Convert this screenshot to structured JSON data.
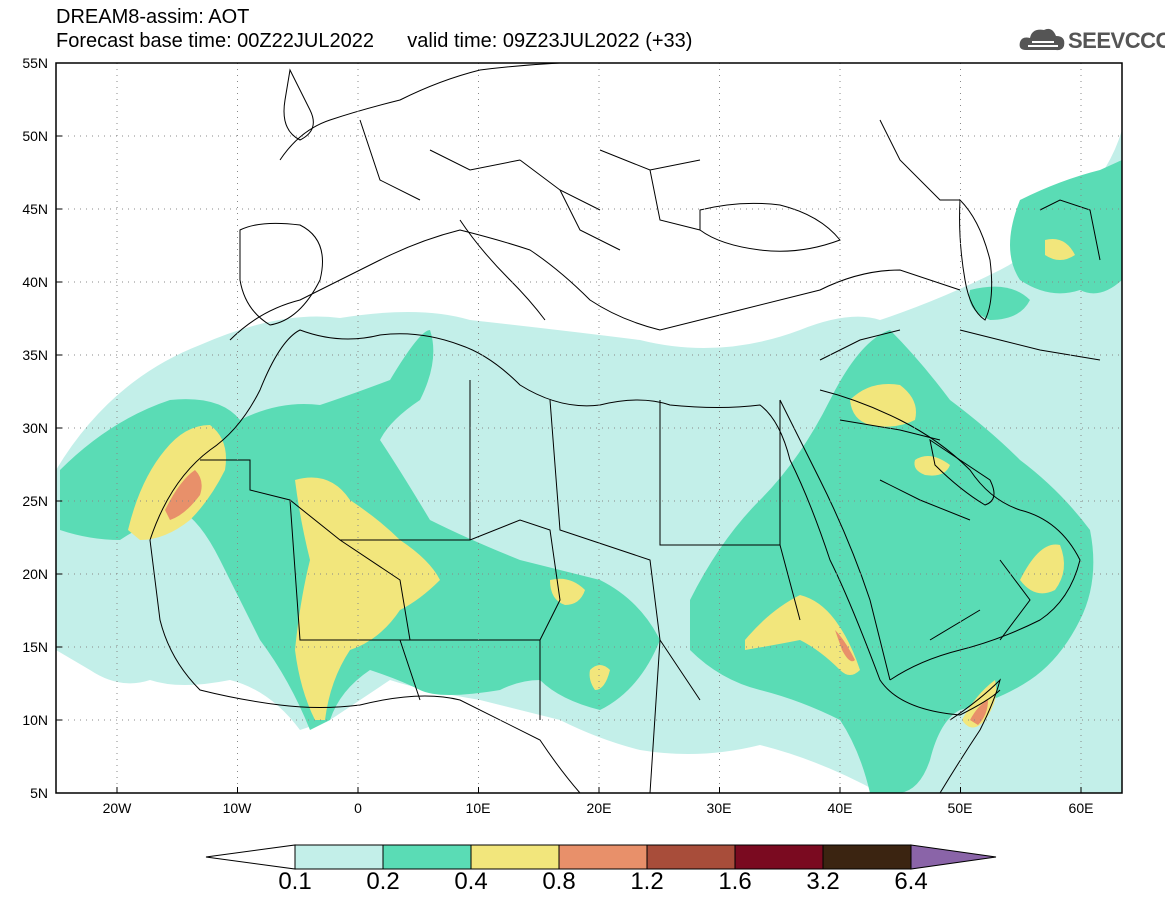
{
  "header": {
    "line1": "DREAM8-assim: AOT",
    "line2": "Forecast base time: 00Z22JUL2022      valid time: 09Z23JUL2022 (+33)"
  },
  "logo": {
    "text": "SEEVCCC",
    "icon": "cloud-icon"
  },
  "map": {
    "lat_labels": [
      "55N",
      "50N",
      "45N",
      "40N",
      "35N",
      "30N",
      "25N",
      "20N",
      "15N",
      "10N",
      "5N"
    ],
    "lon_labels": [
      "20W",
      "10W",
      "0",
      "10E",
      "20E",
      "30E",
      "40E",
      "50E",
      "60E"
    ],
    "colors": {
      "c01": "#c3efe9",
      "c02": "#5adcb5",
      "c04": "#f2e67c",
      "c08": "#e8906a",
      "c12": "#a84d3a",
      "c16": "#7a0a20",
      "c32": "#3b2411",
      "c64": "#8a64a8"
    }
  },
  "colorbar": {
    "levels": [
      "0.1",
      "0.2",
      "0.4",
      "0.8",
      "1.2",
      "1.6",
      "3.2",
      "6.4"
    ]
  }
}
